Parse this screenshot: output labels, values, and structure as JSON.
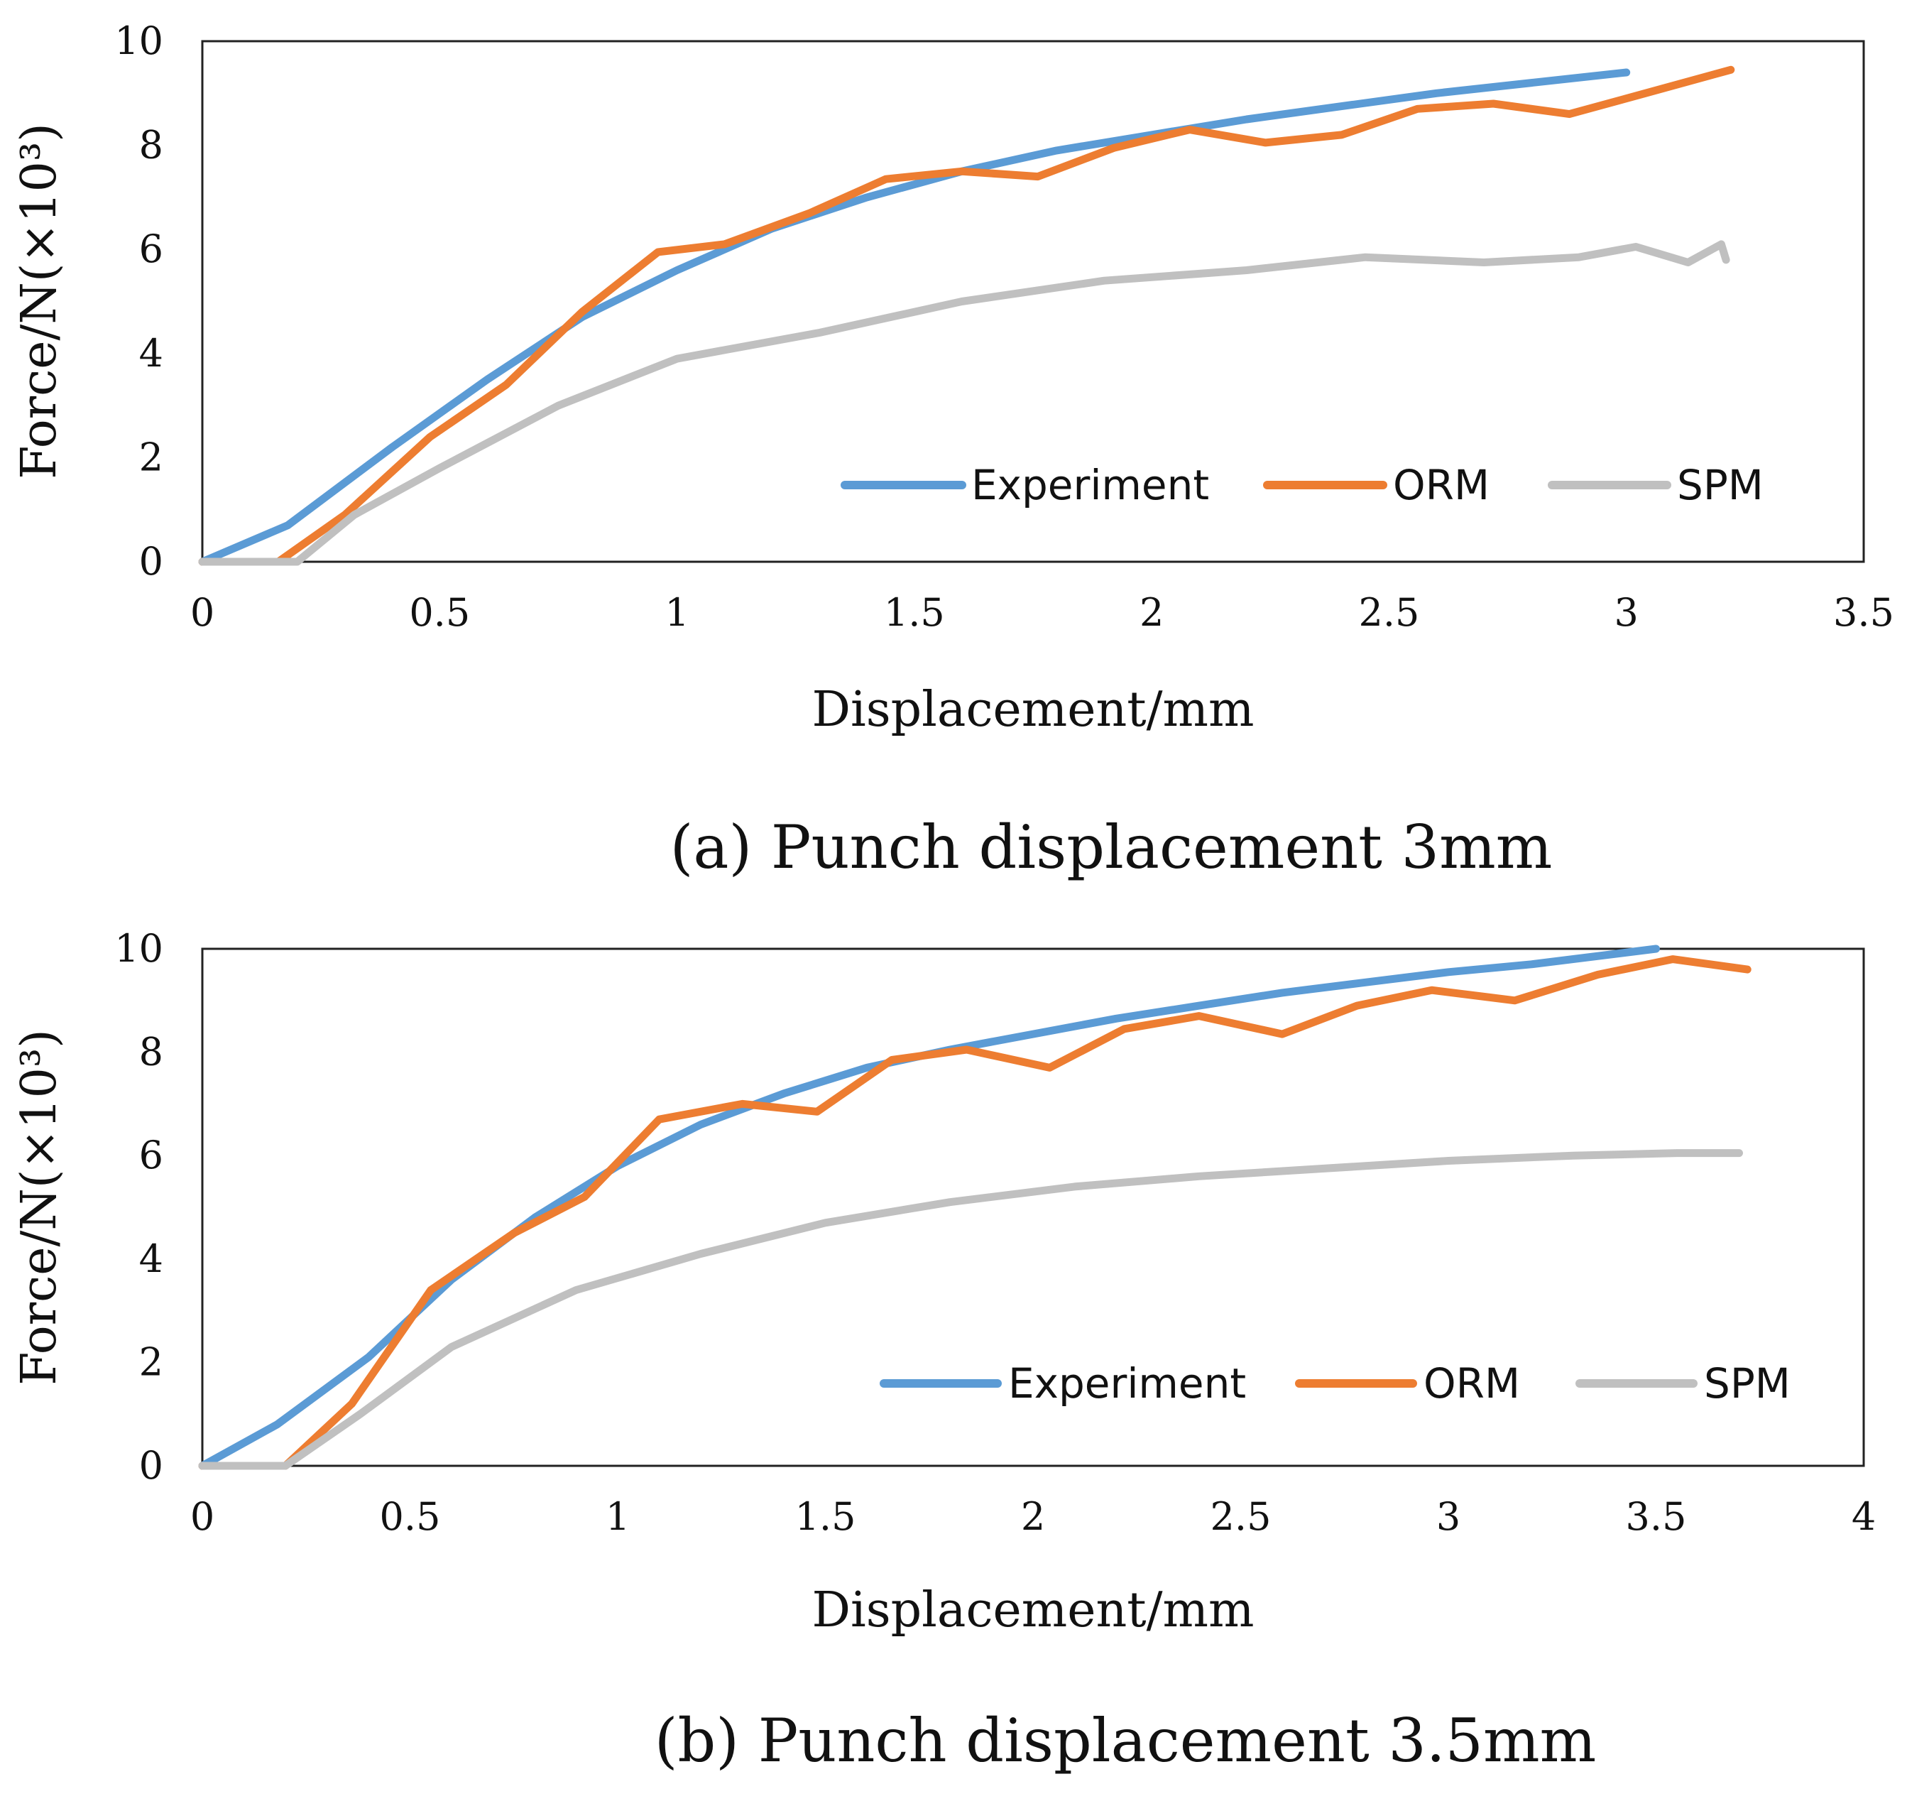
{
  "chart_data": [
    {
      "type": "line",
      "caption": "(a) Punch displacement 3mm",
      "xlabel": "Displacement/mm",
      "ylabel": "Force/N(×10³)",
      "xlim": [
        0,
        3.5
      ],
      "ylim": [
        0,
        10
      ],
      "xticks": [
        "0",
        "0.5",
        "1",
        "1.5",
        "2",
        "2.5",
        "3",
        "3.5"
      ],
      "yticks": [
        "0",
        "2",
        "4",
        "6",
        "8",
        "10"
      ],
      "legend_position": "lower-right",
      "series": [
        {
          "name": "Experiment",
          "color": "#5b9bd5",
          "x": [
            0,
            0.18,
            0.4,
            0.6,
            0.8,
            1.0,
            1.2,
            1.4,
            1.6,
            1.8,
            2.0,
            2.2,
            2.4,
            2.6,
            2.8,
            3.0
          ],
          "y": [
            0,
            0.7,
            2.2,
            3.5,
            4.7,
            5.6,
            6.4,
            7.0,
            7.5,
            7.9,
            8.2,
            8.5,
            8.75,
            9.0,
            9.2,
            9.4
          ]
        },
        {
          "name": "ORM",
          "color": "#ed7d31",
          "x": [
            0,
            0.16,
            0.3,
            0.48,
            0.64,
            0.8,
            0.96,
            1.1,
            1.28,
            1.44,
            1.6,
            1.76,
            1.92,
            2.08,
            2.24,
            2.4,
            2.56,
            2.72,
            2.88,
            3.04,
            3.22
          ],
          "y": [
            0,
            0,
            0.9,
            2.4,
            3.4,
            4.8,
            5.95,
            6.1,
            6.7,
            7.35,
            7.5,
            7.4,
            7.95,
            8.3,
            8.05,
            8.2,
            8.7,
            8.8,
            8.6,
            9.0,
            9.45
          ]
        },
        {
          "name": "SPM",
          "color": "#c0c0c0",
          "x": [
            0,
            0.2,
            0.32,
            0.5,
            0.75,
            1.0,
            1.3,
            1.6,
            1.9,
            2.2,
            2.45,
            2.7,
            2.9,
            3.02,
            3.13,
            3.2,
            3.21
          ],
          "y": [
            0,
            0,
            0.9,
            1.8,
            3.0,
            3.9,
            4.4,
            5.0,
            5.4,
            5.6,
            5.85,
            5.75,
            5.85,
            6.05,
            5.75,
            6.1,
            5.8
          ]
        }
      ]
    },
    {
      "type": "line",
      "caption": "(b) Punch displacement 3.5mm",
      "xlabel": "Displacement/mm",
      "ylabel": "Force/N(×10³)",
      "xlim": [
        0,
        4
      ],
      "ylim": [
        0,
        10
      ],
      "xticks": [
        "0",
        "0.5",
        "1",
        "1.5",
        "2",
        "2.5",
        "3",
        "3.5",
        "4"
      ],
      "yticks": [
        "0",
        "2",
        "4",
        "6",
        "8",
        "10"
      ],
      "legend_position": "lower-right",
      "series": [
        {
          "name": "Experiment",
          "color": "#5b9bd5",
          "x": [
            0,
            0.18,
            0.4,
            0.6,
            0.8,
            1.0,
            1.2,
            1.4,
            1.6,
            1.8,
            2.0,
            2.2,
            2.4,
            2.6,
            2.8,
            3.0,
            3.2,
            3.5
          ],
          "y": [
            0,
            0.8,
            2.1,
            3.6,
            4.8,
            5.8,
            6.6,
            7.2,
            7.7,
            8.05,
            8.35,
            8.65,
            8.9,
            9.15,
            9.35,
            9.55,
            9.7,
            10.0
          ]
        },
        {
          "name": "ORM",
          "color": "#ed7d31",
          "x": [
            0,
            0.2,
            0.36,
            0.55,
            0.75,
            0.92,
            1.1,
            1.3,
            1.48,
            1.66,
            1.84,
            2.04,
            2.22,
            2.4,
            2.6,
            2.78,
            2.96,
            3.16,
            3.36,
            3.54,
            3.72
          ],
          "y": [
            0,
            0,
            1.2,
            3.4,
            4.5,
            5.2,
            6.7,
            7.0,
            6.85,
            7.85,
            8.05,
            7.7,
            8.45,
            8.7,
            8.35,
            8.9,
            9.2,
            9.0,
            9.5,
            9.8,
            9.6
          ]
        },
        {
          "name": "SPM",
          "color": "#c0c0c0",
          "x": [
            0,
            0.2,
            0.38,
            0.6,
            0.9,
            1.2,
            1.5,
            1.8,
            2.1,
            2.4,
            2.7,
            3.0,
            3.3,
            3.55,
            3.7
          ],
          "y": [
            0,
            0,
            1.0,
            2.3,
            3.4,
            4.1,
            4.7,
            5.1,
            5.4,
            5.6,
            5.75,
            5.9,
            6.0,
            6.05,
            6.05
          ]
        }
      ]
    }
  ]
}
